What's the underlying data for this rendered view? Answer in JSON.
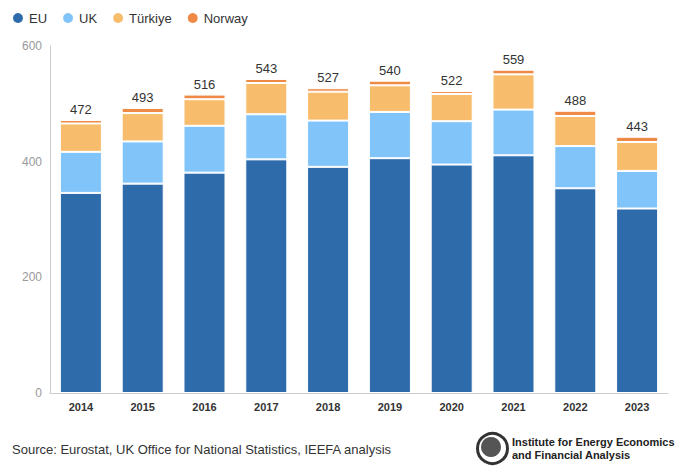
{
  "chart_data": {
    "type": "bar",
    "stacked": true,
    "legend": "top-left",
    "grid": false,
    "categories": [
      "2014",
      "2015",
      "2016",
      "2017",
      "2018",
      "2019",
      "2020",
      "2021",
      "2022",
      "2023"
    ],
    "series": [
      {
        "name": "EU",
        "color": "#2e6bab",
        "values": [
          346,
          362,
          381,
          404,
          391,
          406,
          395,
          411,
          354,
          319
        ]
      },
      {
        "name": "UK",
        "color": "#80c4f9",
        "values": [
          71,
          73,
          81,
          78,
          80,
          80,
          75,
          79,
          73,
          65
        ]
      },
      {
        "name": "Türkiye",
        "color": "#f8bd6c",
        "values": [
          49,
          49,
          46,
          54,
          50,
          46,
          47,
          61,
          52,
          50
        ]
      },
      {
        "name": "Norway",
        "color": "#ee8a45",
        "values": [
          6,
          9,
          8,
          7,
          6,
          8,
          5,
          8,
          9,
          9
        ]
      }
    ],
    "totals": [
      472,
      493,
      516,
      543,
      527,
      540,
      522,
      559,
      488,
      443
    ],
    "ylim": [
      0,
      600
    ],
    "yticks": [
      0,
      200,
      400,
      600
    ],
    "source": "Source: Eurostat, UK Office for National Statistics, IEEFA analysis",
    "logo_lines": [
      "Institute for Energy Economics",
      "and Financial Analysis"
    ]
  }
}
